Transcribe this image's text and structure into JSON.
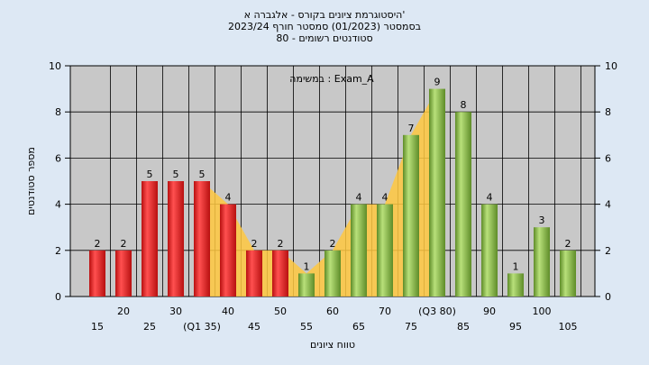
{
  "chart_data": {
    "type": "bar",
    "title_lines": [
      "היסטוגרמת ציונים בקורס - אלגברה א'",
      "בסמסטר  (01/2023)  סמסטר חורף  2023/24",
      "80 - סטודנטים רשומים"
    ],
    "xlabel": "טווח ציונים",
    "ylabel": "מספר סטודנטים",
    "annotation": "במשימה : Exam_A",
    "categories": [
      "15",
      "20",
      "25",
      "30",
      "35",
      "40",
      "45",
      "50",
      "55",
      "60",
      "65",
      "70",
      "75",
      "80",
      "85",
      "90",
      "95",
      "100",
      "105"
    ],
    "x_tick_labels_lower": [
      "15",
      "",
      "25",
      "",
      "(Q1 35)",
      "",
      "45",
      "",
      "55",
      "",
      "65",
      "",
      "75",
      "",
      "85",
      "",
      "95",
      "",
      "105"
    ],
    "x_tick_labels_upper": [
      "",
      "20",
      "",
      "30",
      "",
      "40",
      "",
      "50",
      "",
      "60",
      "",
      "70",
      "",
      "(Q3 80)",
      "",
      "90",
      "",
      "100",
      ""
    ],
    "values": [
      2,
      2,
      5,
      5,
      5,
      4,
      2,
      2,
      1,
      2,
      4,
      4,
      7,
      9,
      8,
      4,
      1,
      3,
      2
    ],
    "bar_groups": [
      "low",
      "low",
      "low",
      "low",
      "low",
      "low",
      "low",
      "low",
      "high",
      "high",
      "high",
      "high",
      "high",
      "high",
      "high",
      "high",
      "high",
      "high",
      "high"
    ],
    "ylim": [
      0,
      10
    ],
    "yticks": [
      0,
      2,
      4,
      6,
      8,
      10
    ],
    "colors": {
      "background": "#dde8f4",
      "plot_background": "#c8c8c8",
      "low_bar": "#e02020",
      "high_bar": "#8cc04a",
      "band": "#ffc840",
      "grid": "#000000"
    }
  }
}
